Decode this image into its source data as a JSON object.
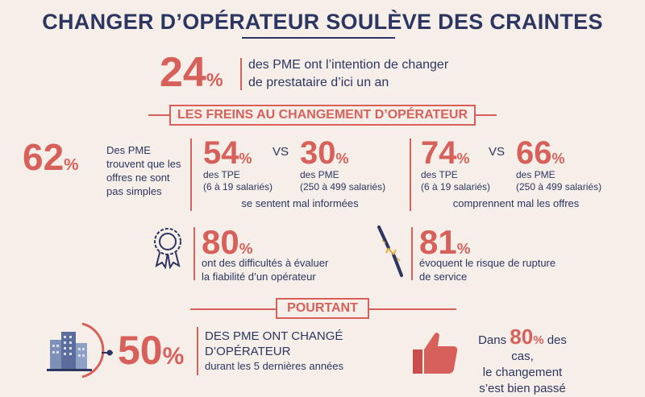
{
  "title": "CHANGER D’OPÉRATEUR SOULÈVE DES CRAINTES",
  "intent": {
    "value": "24",
    "unit": "%",
    "line1": "des PME ont l’intention de changer",
    "line2": "de prestataire d’ici un an"
  },
  "freins_label": "LES FREINS AU CHANGEMENT D’OPÉRATEUR",
  "stat62": {
    "value": "62",
    "unit": "%",
    "line1": "Des PME",
    "line2": "trouvent que les",
    "line3": "offres ne sont",
    "line4": "pas simples"
  },
  "informees": {
    "a_value": "54",
    "a_unit": "%",
    "a_line1": "des TPE",
    "a_line2": "(6 à 19 salariés)",
    "vs": "VS",
    "b_value": "30",
    "b_unit": "%",
    "b_line1": "des PME",
    "b_line2": "(250 à 499 salariés)",
    "caption": "se sentent mal informées"
  },
  "comprennent": {
    "a_value": "74",
    "a_unit": "%",
    "a_line1": "des TPE",
    "a_line2": "(6 à 19 salariés)",
    "vs": "VS",
    "b_value": "66",
    "b_unit": "%",
    "b_line1": "des PME",
    "b_line2": "(250 à 499 salariés)",
    "caption": "comprennent mal les offres"
  },
  "fiabilite": {
    "value": "80",
    "unit": "%",
    "line1": "ont des difficultés à évaluer",
    "line2": "la fiabilité d’un opérateur"
  },
  "rupture": {
    "value": "81",
    "unit": "%",
    "line1": "évoquent le risque de rupture",
    "line2": "de service"
  },
  "pourtant_label": "POURTANT",
  "change": {
    "value": "50",
    "unit": "%",
    "line1": "DES PME ONT CHANGÉ",
    "line2": "D’OPÉRATEUR",
    "line3": "durant les 5 dernières années"
  },
  "bien_passe": {
    "pre": "Dans ",
    "value": "80",
    "unit": "%",
    "post": " des cas,",
    "line2": "le changement",
    "line3": "s’est bien passé"
  },
  "colors": {
    "accent": "#d8605a",
    "navy": "#2d3561",
    "background": "#f6efe9"
  },
  "icons": [
    "medal-icon",
    "cable-icon",
    "building-icon",
    "thumbs-up-icon"
  ]
}
